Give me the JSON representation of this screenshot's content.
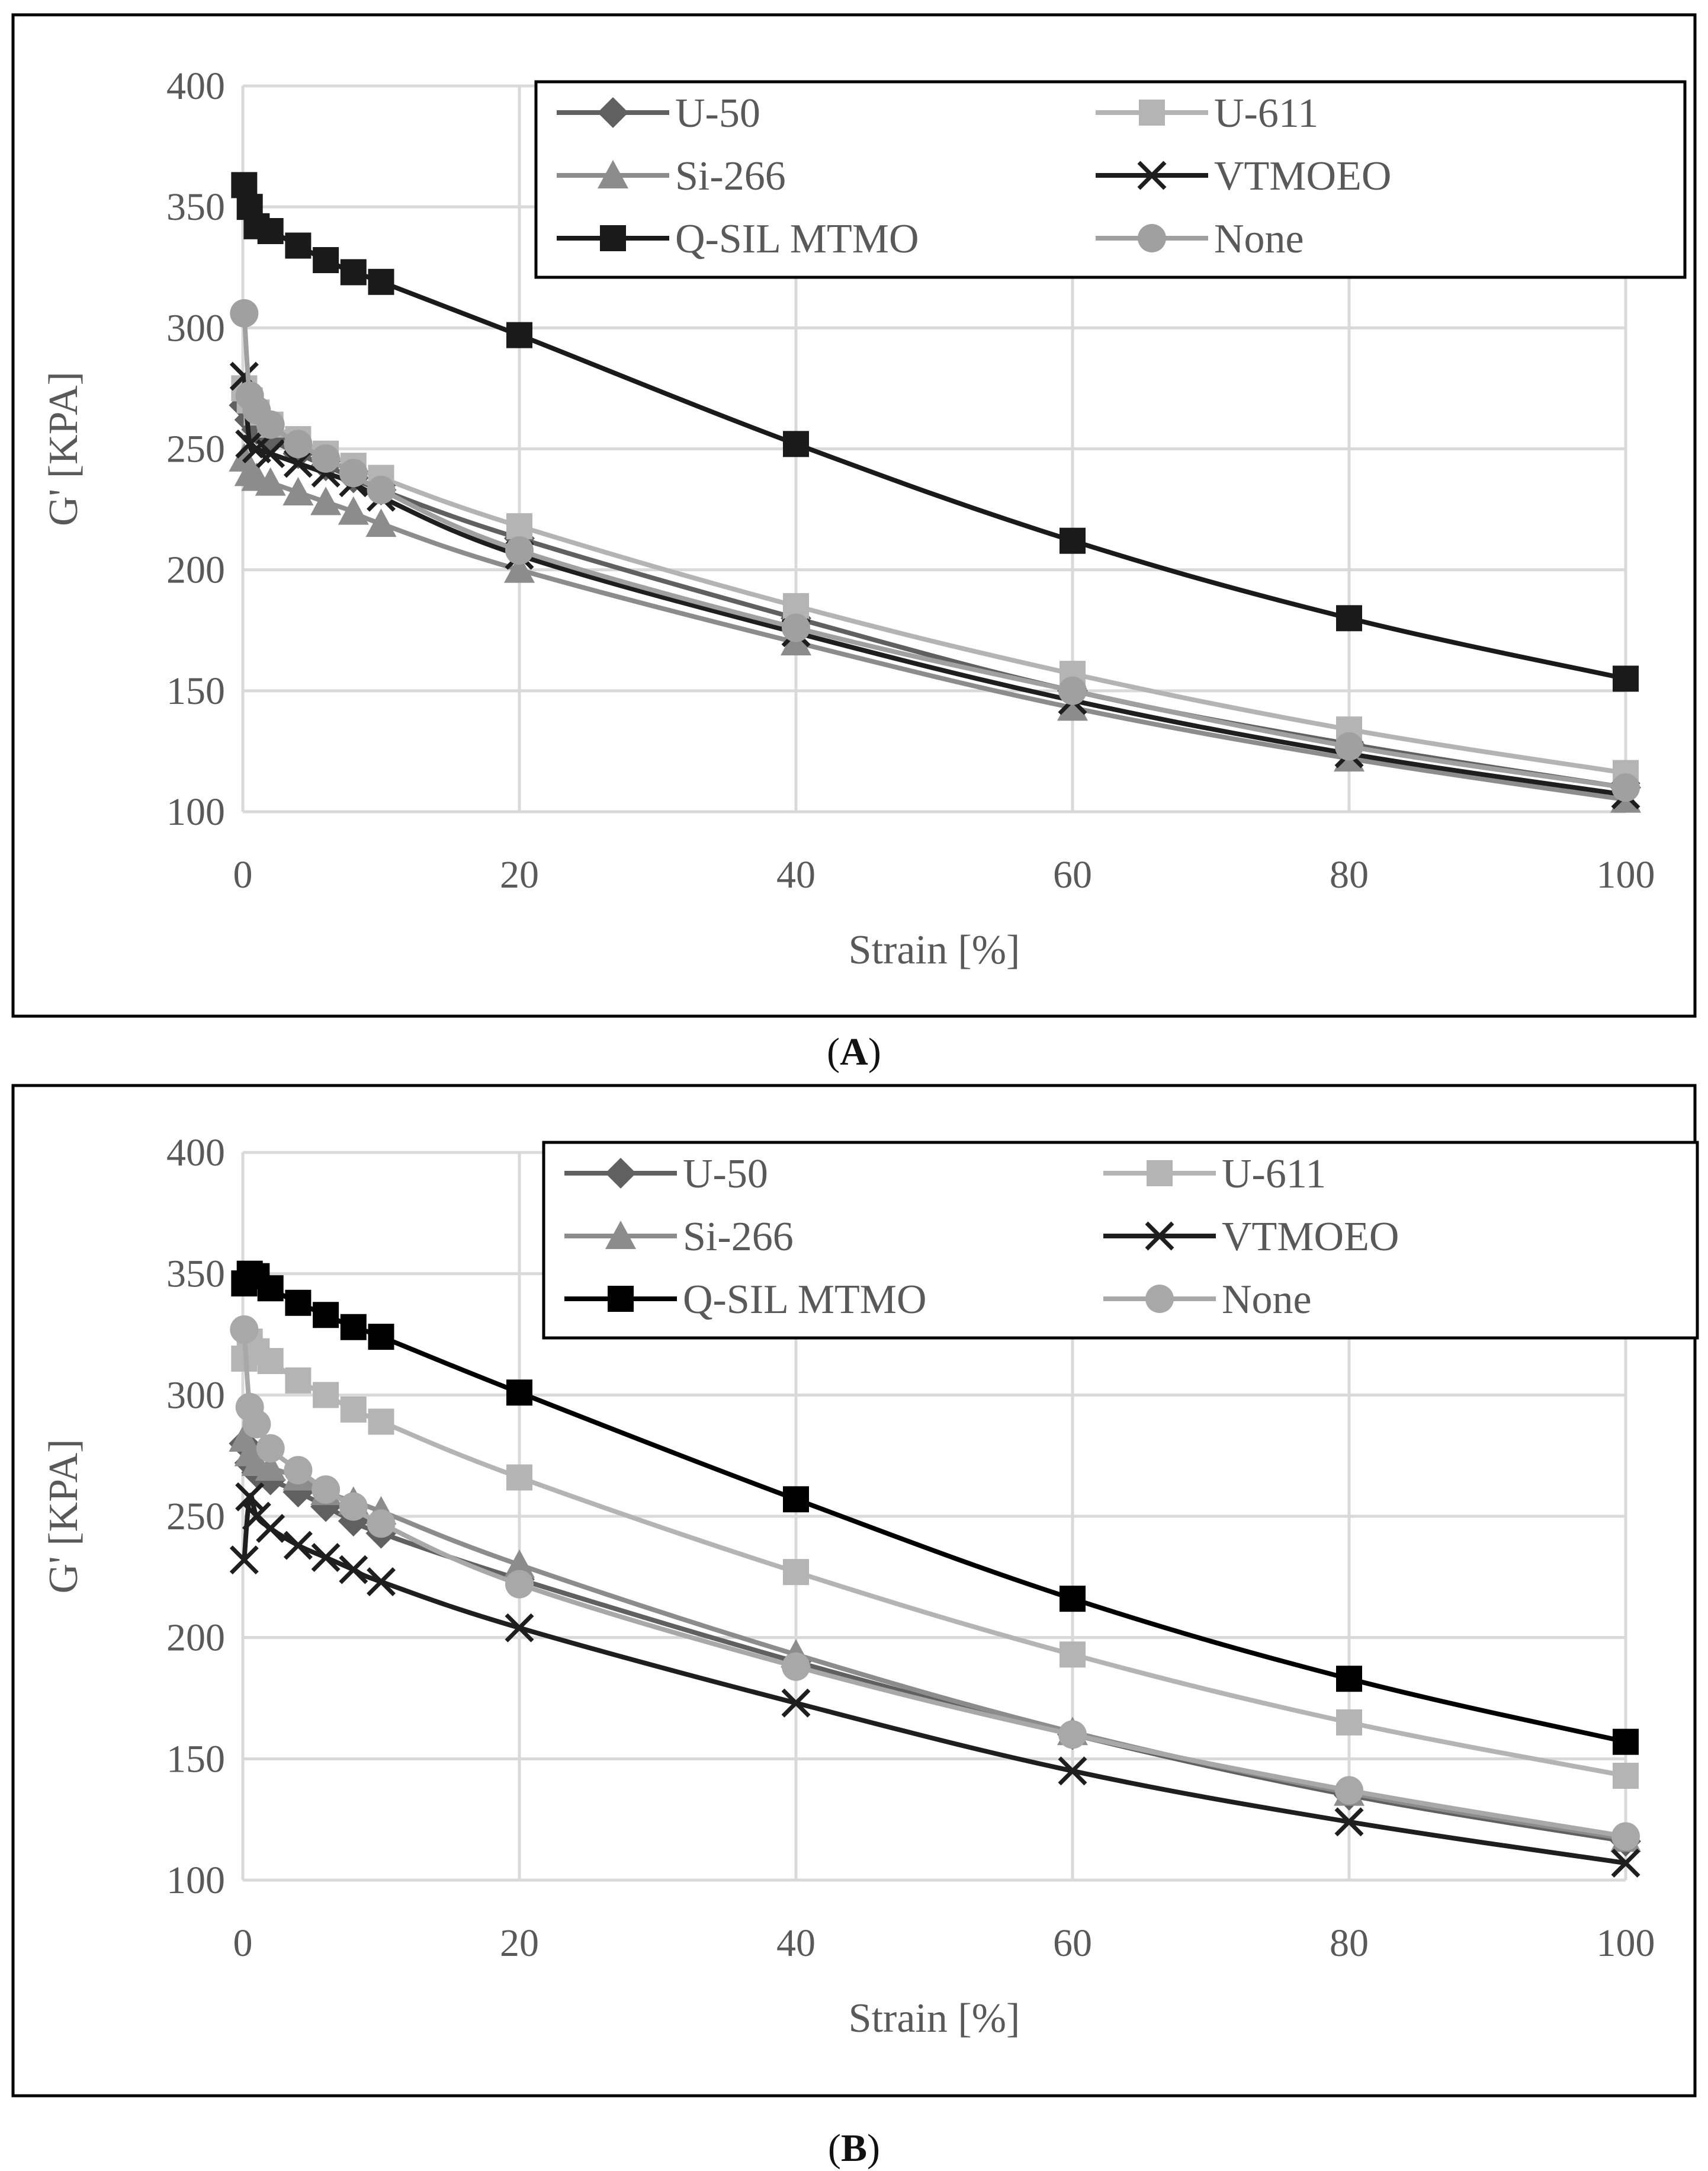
{
  "chart_data": [
    {
      "type": "line",
      "panel_label": "A",
      "xlabel": "Strain [%]",
      "ylabel": "G' [KPA]",
      "xlim": [
        0,
        100
      ],
      "ylim": [
        100,
        400
      ],
      "xticks": [
        0,
        20,
        40,
        60,
        80,
        100
      ],
      "yticks": [
        100,
        150,
        200,
        250,
        300,
        350,
        400
      ],
      "grid": true,
      "legend_position": "top-right",
      "series": [
        {
          "name": "U-50",
          "marker": "diamond",
          "color": "#606060",
          "x": [
            0.1,
            0.5,
            1,
            2,
            4,
            6,
            8,
            10,
            20,
            40,
            60,
            80,
            100
          ],
          "y": [
            268,
            262,
            258,
            254,
            248,
            243,
            238,
            233,
            213,
            180,
            150,
            128,
            110
          ]
        },
        {
          "name": "U-611",
          "marker": "square",
          "color": "#b4b4b4",
          "x": [
            0.1,
            0.5,
            1,
            2,
            4,
            6,
            8,
            10,
            20,
            40,
            60,
            80,
            100
          ],
          "y": [
            275,
            270,
            265,
            260,
            254,
            248,
            243,
            238,
            218,
            185,
            157,
            134,
            116
          ]
        },
        {
          "name": "Si-266",
          "marker": "triangle",
          "color": "#8c8c8c",
          "x": [
            0.1,
            0.5,
            1,
            2,
            4,
            6,
            8,
            10,
            20,
            40,
            60,
            80,
            100
          ],
          "y": [
            246,
            240,
            238,
            236,
            232,
            228,
            224,
            219,
            200,
            170,
            143,
            122,
            105
          ]
        },
        {
          "name": "VTMOEO",
          "marker": "x",
          "color": "#1e1e1e",
          "x": [
            0.1,
            0.5,
            1,
            2,
            4,
            6,
            8,
            10,
            20,
            40,
            60,
            80,
            100
          ],
          "y": [
            280,
            252,
            250,
            248,
            244,
            240,
            236,
            230,
            206,
            174,
            146,
            124,
            107
          ]
        },
        {
          "name": "Q-SIL MTMO",
          "marker": "square",
          "color": "#1a1a1a",
          "x": [
            0.1,
            0.5,
            1,
            2,
            4,
            6,
            8,
            10,
            20,
            40,
            60,
            80,
            100
          ],
          "y": [
            359,
            350,
            342,
            340,
            334,
            328,
            323,
            319,
            297,
            252,
            212,
            180,
            155
          ]
        },
        {
          "name": "None",
          "marker": "circle",
          "color": "#a0a0a0",
          "x": [
            0.1,
            0.5,
            1,
            2,
            4,
            6,
            8,
            10,
            20,
            40,
            60,
            80,
            100
          ],
          "y": [
            306,
            272,
            266,
            260,
            252,
            246,
            240,
            233,
            208,
            176,
            150,
            127,
            110
          ]
        }
      ]
    },
    {
      "type": "line",
      "panel_label": "B",
      "xlabel": "Strain [%]",
      "ylabel": "G' [KPA]",
      "xlim": [
        0,
        100
      ],
      "ylim": [
        100,
        400
      ],
      "xticks": [
        0,
        20,
        40,
        60,
        80,
        100
      ],
      "yticks": [
        100,
        150,
        200,
        250,
        300,
        350,
        400
      ],
      "grid": true,
      "legend_position": "top-right",
      "series": [
        {
          "name": "U-50",
          "marker": "diamond",
          "color": "#606060",
          "x": [
            0.1,
            0.5,
            1,
            2,
            4,
            6,
            8,
            10,
            20,
            40,
            60,
            80,
            100
          ],
          "y": [
            280,
            272,
            268,
            265,
            260,
            254,
            248,
            243,
            224,
            190,
            160,
            135,
            116
          ]
        },
        {
          "name": "U-611",
          "marker": "square",
          "color": "#b4b4b4",
          "x": [
            0.1,
            0.5,
            1,
            2,
            4,
            6,
            8,
            10,
            20,
            40,
            60,
            80,
            100
          ],
          "y": [
            315,
            322,
            318,
            314,
            306,
            300,
            294,
            289,
            266,
            227,
            193,
            165,
            143
          ]
        },
        {
          "name": "Si-266",
          "marker": "triangle",
          "color": "#8c8c8c",
          "x": [
            0.1,
            0.5,
            1,
            2,
            4,
            6,
            8,
            10,
            20,
            40,
            60,
            80,
            100
          ],
          "y": [
            282,
            276,
            272,
            270,
            266,
            260,
            256,
            252,
            230,
            193,
            161,
            136,
            117
          ]
        },
        {
          "name": "VTMOEO",
          "marker": "x",
          "color": "#1e1e1e",
          "x": [
            0.1,
            0.5,
            1,
            2,
            4,
            6,
            8,
            10,
            20,
            40,
            60,
            80,
            100
          ],
          "y": [
            232,
            258,
            250,
            245,
            238,
            233,
            228,
            223,
            204,
            173,
            145,
            124,
            107
          ]
        },
        {
          "name": "Q-SIL MTMO",
          "marker": "square",
          "color": "#000000",
          "x": [
            0.1,
            0.5,
            1,
            2,
            4,
            6,
            8,
            10,
            20,
            40,
            60,
            80,
            100
          ],
          "y": [
            346,
            350,
            349,
            344,
            338,
            333,
            328,
            324,
            301,
            257,
            216,
            183,
            157
          ]
        },
        {
          "name": "None",
          "marker": "circle",
          "color": "#a8a8a8",
          "x": [
            0.1,
            0.5,
            1,
            2,
            4,
            6,
            8,
            10,
            20,
            40,
            60,
            80,
            100
          ],
          "y": [
            327,
            295,
            288,
            278,
            269,
            261,
            254,
            247,
            222,
            188,
            160,
            137,
            118
          ]
        }
      ]
    }
  ]
}
